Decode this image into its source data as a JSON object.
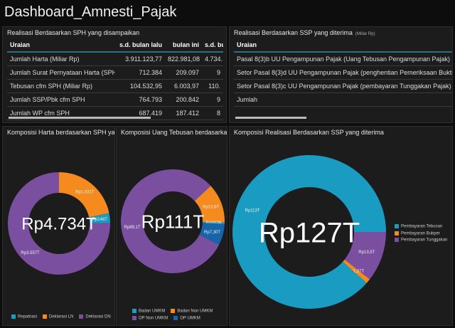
{
  "app": {
    "title": "Dashboard_Amnesti_Pajak"
  },
  "colors": {
    "teal": "#1a9bc1",
    "orange": "#f58a1f",
    "purple": "#7b4fa0",
    "blue": "#1565a8"
  },
  "sph_table": {
    "title": "Realisasi Berdasarkan SPH yang disampaikan",
    "headers": [
      "Uraian",
      "s.d. bulan lalu",
      "bulan ini",
      "s.d. bulan ini"
    ],
    "rows": [
      [
        "Jumlah Harta (Miliar Rp)",
        "3.911.123,77",
        "822.981,08",
        "4.734."
      ],
      [
        "Jumlah Surat Pernyataan Harta (SPH)",
        "712.384",
        "209.097",
        "9"
      ],
      [
        "Tebusan cfm SPH (Miliar Rp)",
        "104.532,95",
        "6.003,97",
        "110."
      ],
      [
        "Jumlah SSP/Pbk cfm SPH",
        "764.793",
        "200.842",
        "9"
      ],
      [
        "Jumlah WP cfm SPH",
        "687.419",
        "187.412",
        "8"
      ]
    ]
  },
  "ssp_table": {
    "title": "Realisasi Berdasarkan SSP yang diterima",
    "unit": "(Miliar Rp)",
    "headers": [
      "Uraian"
    ],
    "rows": [
      [
        "Pasal 8(3)b UU Pengampunan Pajak (Uang Tebusan Pengampunan Pajak)"
      ],
      [
        "Setor Pasal 8(3)d UU Pengampunan Pajak (penghentian Pemeriksaan Bukti Per"
      ],
      [
        "Setor Pasal 8(3)c UU Pengampunan Pajak (pembayaran Tunggakan Pajak)"
      ],
      [
        "Jumlah"
      ]
    ]
  },
  "chart_data": [
    {
      "type": "pie",
      "title": "Komposisi Harta berdasarkan SPH yang",
      "center_label": "Rp4.734T",
      "start_angle": 0,
      "slices": [
        {
          "name": "Deklarasi LN",
          "value": 1.031,
          "label": "Rp1.031T",
          "color": "#f58a1f"
        },
        {
          "name": "Repatriasi",
          "value": 0.146,
          "label": "Rp146T",
          "color": "#1a9bc1"
        },
        {
          "name": "Deklarasi DN",
          "value": 3.557,
          "label": "Rp3.557T",
          "color": "#7b4fa0"
        }
      ],
      "legend": [
        "Repatriasi",
        "Deklarasi LN",
        "Deklarasi DN"
      ],
      "legend_placement": "bottom"
    },
    {
      "type": "pie",
      "title": "Komposisi Uang Tebusan berdasarkan S",
      "center_label": "Rp111T",
      "start_angle": 47,
      "slices": [
        {
          "name": "Badan Non UMKM",
          "value": 13.6,
          "label": "Rp13,6T",
          "color": "#f58a1f"
        },
        {
          "name": "Badan UMKM",
          "value": 0.552,
          "label": "Rp552B",
          "color": "#1a9bc1"
        },
        {
          "name": "OP UMKM",
          "value": 7.3,
          "label": "Rp7,30T",
          "color": "#1565a8"
        },
        {
          "name": "OP Non UMKM",
          "value": 89.1,
          "label": "Rp89,1T",
          "color": "#7b4fa0"
        }
      ],
      "legend": [
        "Badan UMKM",
        "Badan Non UMKM",
        "OP Non UMKM",
        "OP UMKM"
      ],
      "legend_placement": "bottom"
    },
    {
      "type": "pie",
      "title": "Komposisi Realisasi Berdasarkan SSP yang diterima",
      "center_label": "Rp127T",
      "start_angle": 90,
      "slices": [
        {
          "name": "Pembayaran Tunggakan",
          "value": 13.5,
          "label": "Rp13,5T",
          "color": "#7b4fa0"
        },
        {
          "name": "Pembayaran Bukper",
          "value": 1.27,
          "label": "Rp1,27T",
          "color": "#f58a1f"
        },
        {
          "name": "Pembayaran Tebusan",
          "value": 113,
          "label": "Rp113T",
          "color": "#1a9bc1"
        }
      ],
      "legend": [
        "Pembayaran Tebusan",
        "Pembayaran Bukper",
        "Pembayaran Tunggakan"
      ],
      "legend_placement": "right"
    }
  ]
}
